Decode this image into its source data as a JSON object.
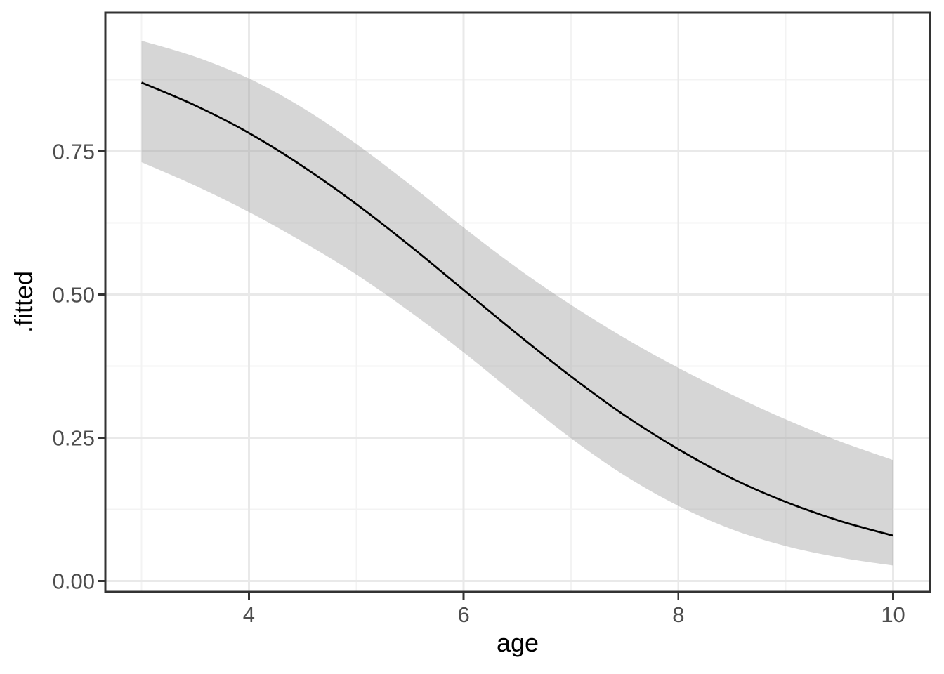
{
  "chart_data": {
    "type": "line",
    "title": "",
    "xlabel": "age",
    "ylabel": ".fitted",
    "x": [
      3,
      3.5,
      4,
      4.5,
      5,
      5.5,
      6,
      6.5,
      7,
      7.5,
      8,
      8.5,
      9,
      9.5,
      10
    ],
    "series": [
      {
        "name": "fitted",
        "kind": "line",
        "values": [
          0.87,
          0.83,
          0.782,
          0.724,
          0.658,
          0.585,
          0.508,
          0.431,
          0.357,
          0.289,
          0.23,
          0.179,
          0.138,
          0.105,
          0.079
        ]
      },
      {
        "name": "ci-lower",
        "kind": "ribbon-edge",
        "values": [
          0.731,
          0.69,
          0.644,
          0.592,
          0.535,
          0.47,
          0.399,
          0.323,
          0.249,
          0.184,
          0.131,
          0.09,
          0.061,
          0.041,
          0.027
        ]
      },
      {
        "name": "ci-upper",
        "kind": "ribbon-edge",
        "values": [
          0.943,
          0.915,
          0.877,
          0.826,
          0.763,
          0.692,
          0.617,
          0.546,
          0.482,
          0.424,
          0.372,
          0.325,
          0.282,
          0.244,
          0.211
        ]
      }
    ],
    "ribbon": {
      "lower_series": "ci-lower",
      "upper_series": "ci-upper",
      "color": "#999999",
      "opacity": 0.4
    },
    "xlim": [
      2.663,
      10.343
    ],
    "ylim": [
      -0.019,
      0.992
    ],
    "x_ticks": {
      "labels": [
        "4",
        "6",
        "8",
        "10"
      ],
      "values": [
        4,
        6,
        8,
        10
      ],
      "minor": [
        3,
        5,
        7,
        9
      ]
    },
    "y_ticks": {
      "labels": [
        "0.00",
        "0.25",
        "0.50",
        "0.75"
      ],
      "values": [
        0,
        0.25,
        0.5,
        0.75
      ],
      "minor": [
        0.125,
        0.375,
        0.625,
        0.875
      ]
    },
    "grid": "on",
    "legend_position": "none",
    "colors": {
      "panel_background": "#FFFFFF",
      "panel_border": "#333333",
      "grid_major": "#E9E9E9",
      "grid_minor": "#F3F3F3",
      "axis_tick": "#333333",
      "tick_label": "#4D4D4D",
      "axis_title": "#000000",
      "line": "#000000"
    }
  }
}
